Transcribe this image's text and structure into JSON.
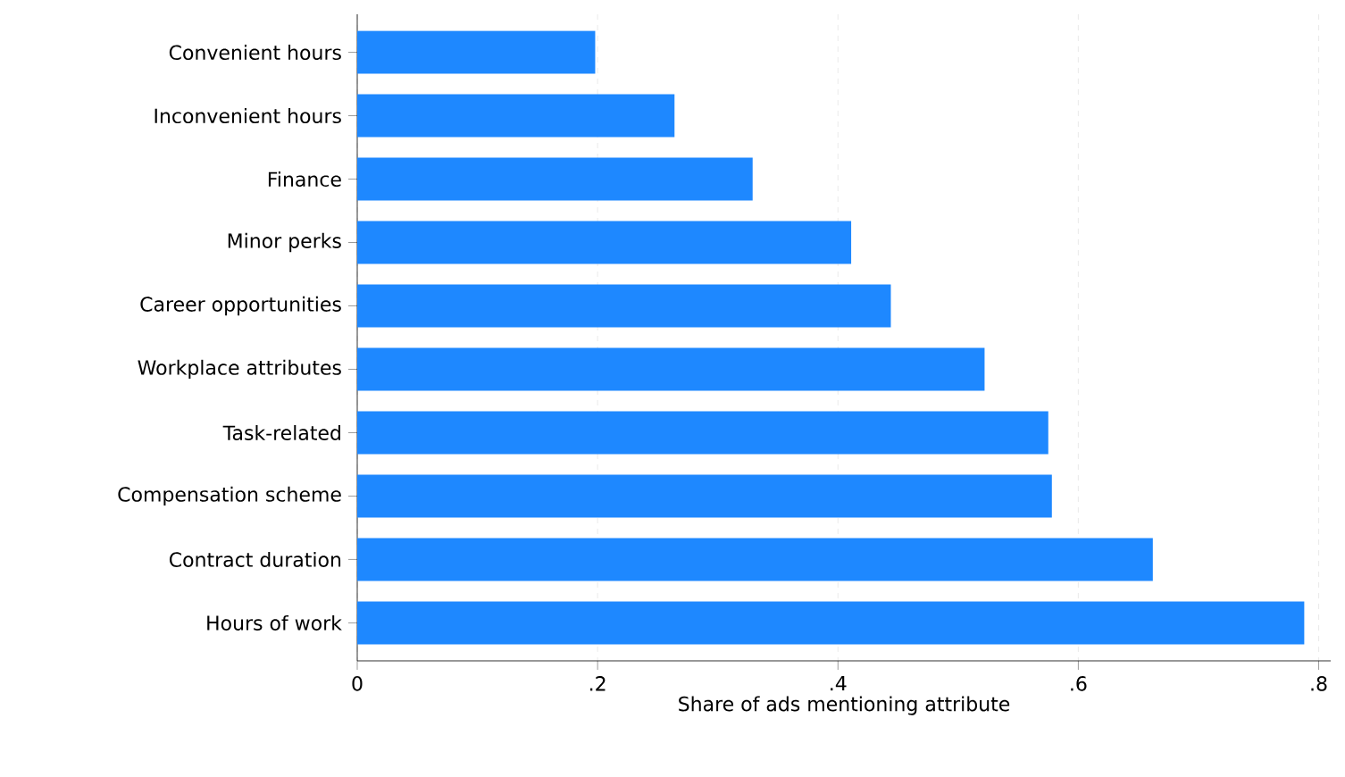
{
  "chart_data": {
    "type": "bar",
    "orientation": "horizontal",
    "xlabel": "Share of ads mentioning attribute",
    "categories": [
      "Convenient hours",
      "Inconvenient hours",
      "Finance",
      "Minor perks",
      "Career opportunities",
      "Workplace attributes",
      "Task-related",
      "Compensation scheme",
      "Contract duration",
      "Hours of work"
    ],
    "values": [
      0.198,
      0.264,
      0.329,
      0.411,
      0.444,
      0.522,
      0.575,
      0.578,
      0.662,
      0.788
    ],
    "color": "#1e88ff",
    "xlim": [
      0,
      0.81
    ],
    "xticks": [
      0,
      {
        "value": 0.2,
        "label": ".2"
      },
      {
        "value": 0.4,
        "label": ".4"
      },
      {
        "value": 0.6,
        "label": ".6"
      },
      {
        "value": 0.8,
        "label": ".8"
      }
    ],
    "grid": "x"
  }
}
